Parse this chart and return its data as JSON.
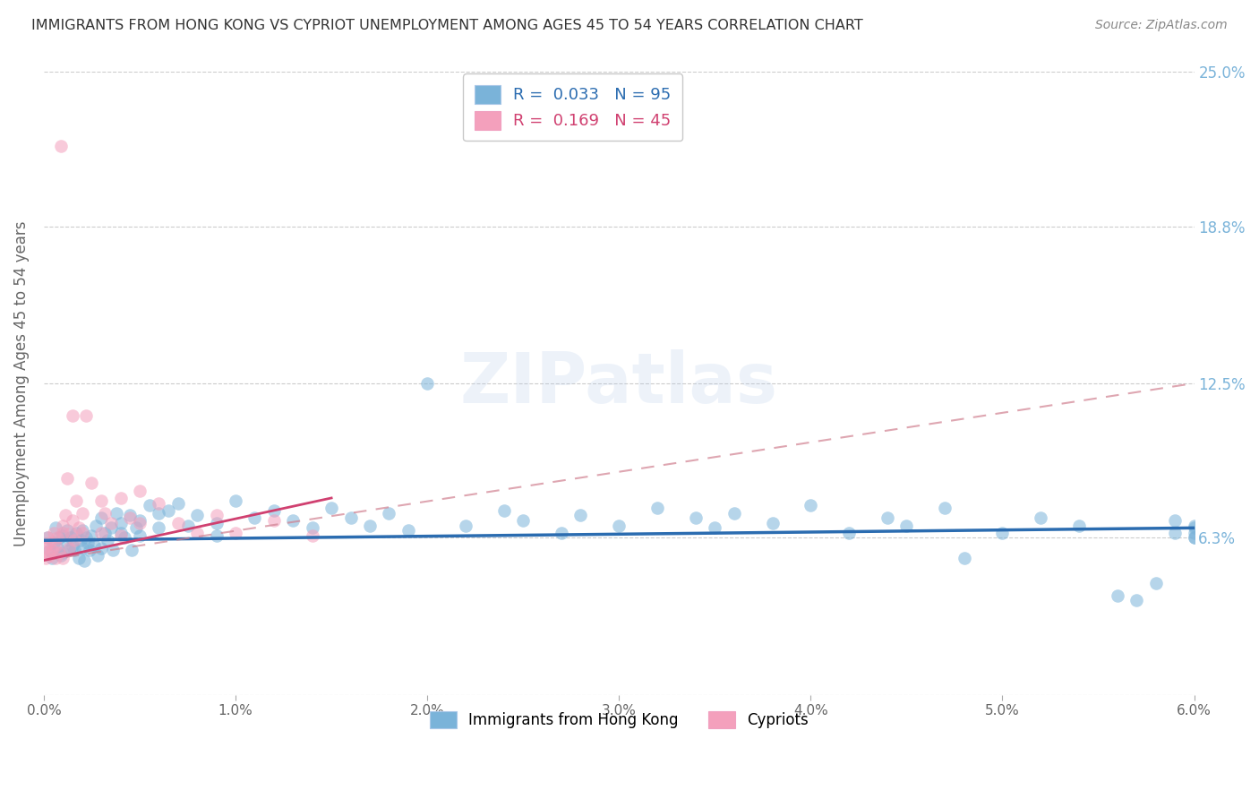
{
  "title": "IMMIGRANTS FROM HONG KONG VS CYPRIOT UNEMPLOYMENT AMONG AGES 45 TO 54 YEARS CORRELATION CHART",
  "source": "Source: ZipAtlas.com",
  "ylabel": "Unemployment Among Ages 45 to 54 years",
  "xlim": [
    0.0,
    0.06
  ],
  "ylim": [
    0.0,
    0.25
  ],
  "xticks": [
    0.0,
    0.01,
    0.02,
    0.03,
    0.04,
    0.05,
    0.06
  ],
  "xtick_labels": [
    "0.0%",
    "1.0%",
    "2.0%",
    "3.0%",
    "4.0%",
    "5.0%",
    "6.0%"
  ],
  "ytick_positions": [
    0.0,
    0.063,
    0.125,
    0.188,
    0.25
  ],
  "ytick_labels": [
    "",
    "6.3%",
    "12.5%",
    "18.8%",
    "25.0%"
  ],
  "blue_color": "#7ab3d9",
  "pink_color": "#f4a0bc",
  "blue_trend_color": "#2b6cb0",
  "pink_trend_color": "#d04070",
  "pink_dash_color": "#d08090",
  "blue_scatter_x": [
    0.0002,
    0.0003,
    0.0004,
    0.0005,
    0.0006,
    0.0007,
    0.0008,
    0.0009,
    0.001,
    0.001,
    0.0011,
    0.0012,
    0.0013,
    0.0014,
    0.0015,
    0.0016,
    0.0017,
    0.0018,
    0.0019,
    0.002,
    0.002,
    0.0021,
    0.0022,
    0.0023,
    0.0024,
    0.0025,
    0.0026,
    0.0027,
    0.0028,
    0.003,
    0.003,
    0.0032,
    0.0033,
    0.0035,
    0.0036,
    0.0038,
    0.004,
    0.004,
    0.0042,
    0.0045,
    0.0046,
    0.0048,
    0.005,
    0.005,
    0.0055,
    0.006,
    0.006,
    0.0065,
    0.007,
    0.0075,
    0.008,
    0.009,
    0.009,
    0.01,
    0.011,
    0.012,
    0.013,
    0.014,
    0.015,
    0.016,
    0.017,
    0.018,
    0.019,
    0.02,
    0.022,
    0.024,
    0.025,
    0.027,
    0.028,
    0.03,
    0.032,
    0.034,
    0.035,
    0.036,
    0.038,
    0.04,
    0.042,
    0.044,
    0.045,
    0.047,
    0.048,
    0.05,
    0.052,
    0.054,
    0.056,
    0.057,
    0.058,
    0.059,
    0.059,
    0.06,
    0.06,
    0.06,
    0.06,
    0.06
  ],
  "blue_scatter_y": [
    0.063,
    0.058,
    0.055,
    0.061,
    0.067,
    0.059,
    0.063,
    0.056,
    0.064,
    0.057,
    0.062,
    0.066,
    0.058,
    0.063,
    0.06,
    0.058,
    0.065,
    0.055,
    0.062,
    0.059,
    0.066,
    0.054,
    0.063,
    0.061,
    0.058,
    0.064,
    0.06,
    0.068,
    0.056,
    0.071,
    0.059,
    0.065,
    0.062,
    0.067,
    0.058,
    0.073,
    0.065,
    0.069,
    0.063,
    0.072,
    0.058,
    0.067,
    0.064,
    0.07,
    0.076,
    0.073,
    0.067,
    0.074,
    0.077,
    0.068,
    0.072,
    0.069,
    0.064,
    0.078,
    0.071,
    0.074,
    0.07,
    0.067,
    0.075,
    0.071,
    0.068,
    0.073,
    0.066,
    0.125,
    0.068,
    0.074,
    0.07,
    0.065,
    0.072,
    0.068,
    0.075,
    0.071,
    0.067,
    0.073,
    0.069,
    0.076,
    0.065,
    0.071,
    0.068,
    0.075,
    0.055,
    0.065,
    0.071,
    0.068,
    0.04,
    0.038,
    0.045,
    0.065,
    0.07,
    0.067,
    0.063,
    0.068,
    0.065,
    0.063
  ],
  "pink_scatter_x": [
    0.0001,
    0.0001,
    0.0002,
    0.0002,
    0.0003,
    0.0003,
    0.0004,
    0.0005,
    0.0006,
    0.0006,
    0.0007,
    0.0008,
    0.0009,
    0.001,
    0.001,
    0.001,
    0.0011,
    0.0012,
    0.0013,
    0.0014,
    0.0015,
    0.0015,
    0.0016,
    0.0017,
    0.0018,
    0.002,
    0.002,
    0.0022,
    0.0025,
    0.003,
    0.003,
    0.0032,
    0.0035,
    0.004,
    0.004,
    0.0045,
    0.005,
    0.005,
    0.006,
    0.007,
    0.008,
    0.009,
    0.01,
    0.012,
    0.014
  ],
  "pink_scatter_y": [
    0.06,
    0.055,
    0.057,
    0.063,
    0.056,
    0.061,
    0.058,
    0.065,
    0.055,
    0.06,
    0.063,
    0.057,
    0.22,
    0.065,
    0.055,
    0.068,
    0.072,
    0.087,
    0.059,
    0.065,
    0.112,
    0.07,
    0.062,
    0.078,
    0.067,
    0.065,
    0.073,
    0.112,
    0.085,
    0.078,
    0.065,
    0.073,
    0.069,
    0.079,
    0.064,
    0.071,
    0.069,
    0.082,
    0.077,
    0.069,
    0.065,
    0.072,
    0.065,
    0.07,
    0.064
  ],
  "blue_trend_x": [
    0.0,
    0.06
  ],
  "blue_trend_y": [
    0.062,
    0.067
  ],
  "pink_solid_trend_x": [
    0.0,
    0.015
  ],
  "pink_solid_trend_y": [
    0.054,
    0.079
  ],
  "pink_dash_trend_x": [
    0.0,
    0.06
  ],
  "pink_dash_trend_y": [
    0.054,
    0.125
  ]
}
